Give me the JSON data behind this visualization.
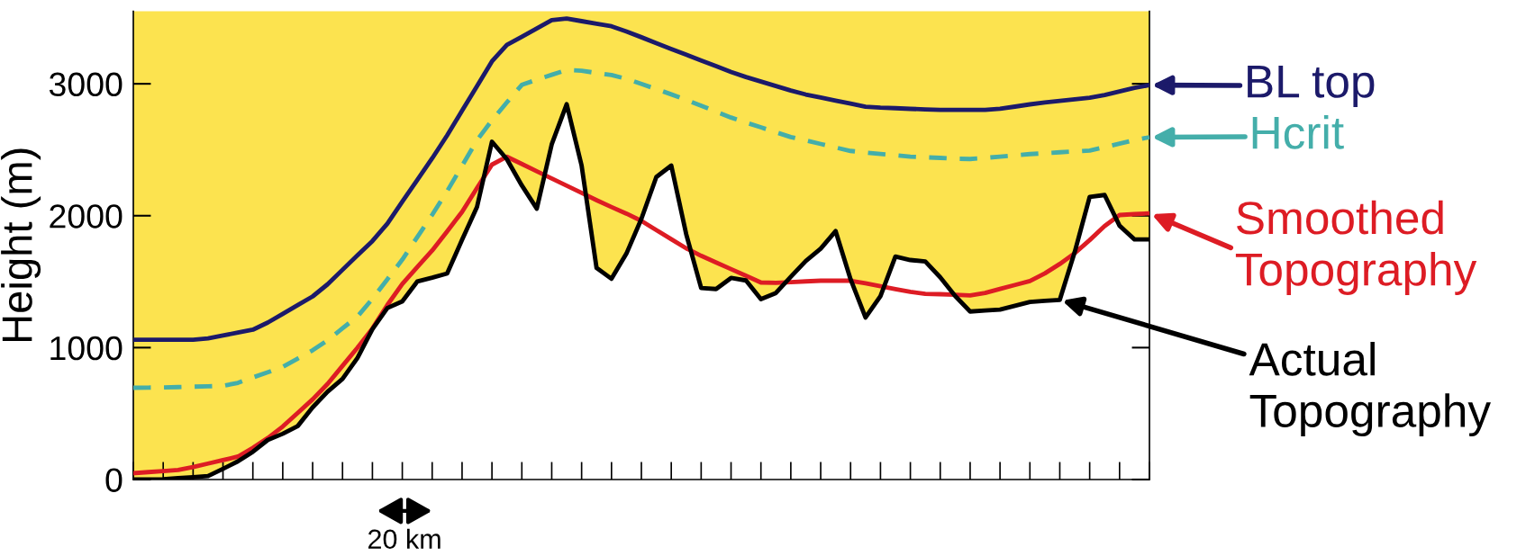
{
  "chart_data": {
    "type": "line",
    "ylabel": "Height (m)",
    "ylim": [
      0,
      3550
    ],
    "yticks": [
      0,
      1000,
      2000,
      3000
    ],
    "grid": false,
    "marker": "none",
    "legend": "right",
    "annotations": [
      "20 km"
    ],
    "categories": [
      null,
      null,
      null,
      null,
      null,
      null,
      null,
      null,
      null,
      null,
      null,
      null,
      null,
      null,
      null,
      null,
      null,
      null,
      null,
      null,
      null,
      null,
      null,
      null,
      null,
      null,
      null,
      null,
      null,
      null,
      null,
      null,
      null,
      null,
      null,
      null,
      null,
      null,
      null,
      null,
      null,
      null,
      null,
      null,
      null,
      null,
      null,
      null,
      null,
      null,
      null,
      null,
      null,
      null,
      null,
      null,
      null,
      null,
      null,
      null,
      null,
      null,
      null,
      null,
      null,
      null,
      null,
      null,
      null
    ],
    "series": [
      {
        "name": "BL top",
        "color": "#1c1a6a",
        "line_style": "solid",
        "values": [
          1060,
          1060,
          1060,
          1060,
          1060,
          1070,
          1092,
          1114,
          1136,
          1190,
          1256,
          1322,
          1388,
          1480,
          1590,
          1700,
          1808,
          1940,
          2106,
          2270,
          2435,
          2609,
          2796,
          2983,
          3170,
          3295,
          3357,
          3420,
          3483,
          3495,
          3475,
          3455,
          3436,
          3397,
          3353,
          3308,
          3264,
          3221,
          3177,
          3134,
          3090,
          3051,
          3017,
          2983,
          2949,
          2919,
          2896,
          2873,
          2850,
          2826,
          2819,
          2815,
          2810,
          2806,
          2802,
          2802,
          2802,
          2802,
          2811,
          2827,
          2844,
          2858,
          2870,
          2882,
          2894,
          2915,
          2942,
          2969,
          2990
        ]
      },
      {
        "name": "Hcrit",
        "color": "#44aeaa",
        "line_style": "dashed",
        "values": [
          696,
          697,
          698,
          701,
          704,
          707,
          710,
          733,
          774,
          813,
          854,
          917,
          980,
          1055,
          1146,
          1236,
          1370,
          1518,
          1667,
          1837,
          2007,
          2186,
          2378,
          2572,
          2723,
          2859,
          2992,
          3031,
          3068,
          3105,
          3099,
          3082,
          3066,
          3038,
          2999,
          2960,
          2920,
          2878,
          2834,
          2789,
          2744,
          2706,
          2670,
          2633,
          2596,
          2570,
          2544,
          2517,
          2491,
          2479,
          2468,
          2458,
          2448,
          2443,
          2438,
          2432,
          2430,
          2438,
          2448,
          2458,
          2467,
          2474,
          2481,
          2487,
          2494,
          2519,
          2546,
          2574,
          2595
        ]
      },
      {
        "name": "Smoothed\nTopography",
        "color": "#dd1c24",
        "line_style": "solid",
        "values": [
          48,
          56,
          64,
          72,
          94,
          121,
          147,
          174,
          240,
          315,
          402,
          505,
          608,
          725,
          862,
          999,
          1145,
          1323,
          1483,
          1610,
          1736,
          1881,
          2029,
          2210,
          2387,
          2447,
          2392,
          2337,
          2282,
          2228,
          2173,
          2118,
          2066,
          2016,
          1961,
          1891,
          1822,
          1753,
          1696,
          1646,
          1595,
          1545,
          1494,
          1491,
          1496,
          1502,
          1507,
          1507,
          1507,
          1487,
          1466,
          1444,
          1423,
          1408,
          1405,
          1401,
          1396,
          1414,
          1445,
          1475,
          1505,
          1563,
          1634,
          1716,
          1815,
          1922,
          2005,
          2012,
          2018
        ]
      },
      {
        "name": "Actual\nTopography",
        "color": "#000000",
        "type": "area",
        "line_style": "solid",
        "values": [
          0,
          0,
          2,
          10,
          18,
          26,
          81,
          138,
          210,
          300,
          347,
          405,
          547,
          666,
          763,
          922,
          1140,
          1300,
          1351,
          1501,
          1530,
          1562,
          1817,
          2067,
          2561,
          2428,
          2229,
          2054,
          2541,
          2845,
          2380,
          1604,
          1522,
          1713,
          1976,
          2293,
          2380,
          1860,
          1452,
          1444,
          1528,
          1509,
          1367,
          1414,
          1537,
          1656,
          1750,
          1883,
          1518,
          1228,
          1391,
          1690,
          1664,
          1653,
          1533,
          1391,
          1274,
          1281,
          1288,
          1317,
          1346,
          1355,
          1362,
          1725,
          2143,
          2157,
          1924,
          1820,
          1820
        ]
      }
    ]
  }
}
